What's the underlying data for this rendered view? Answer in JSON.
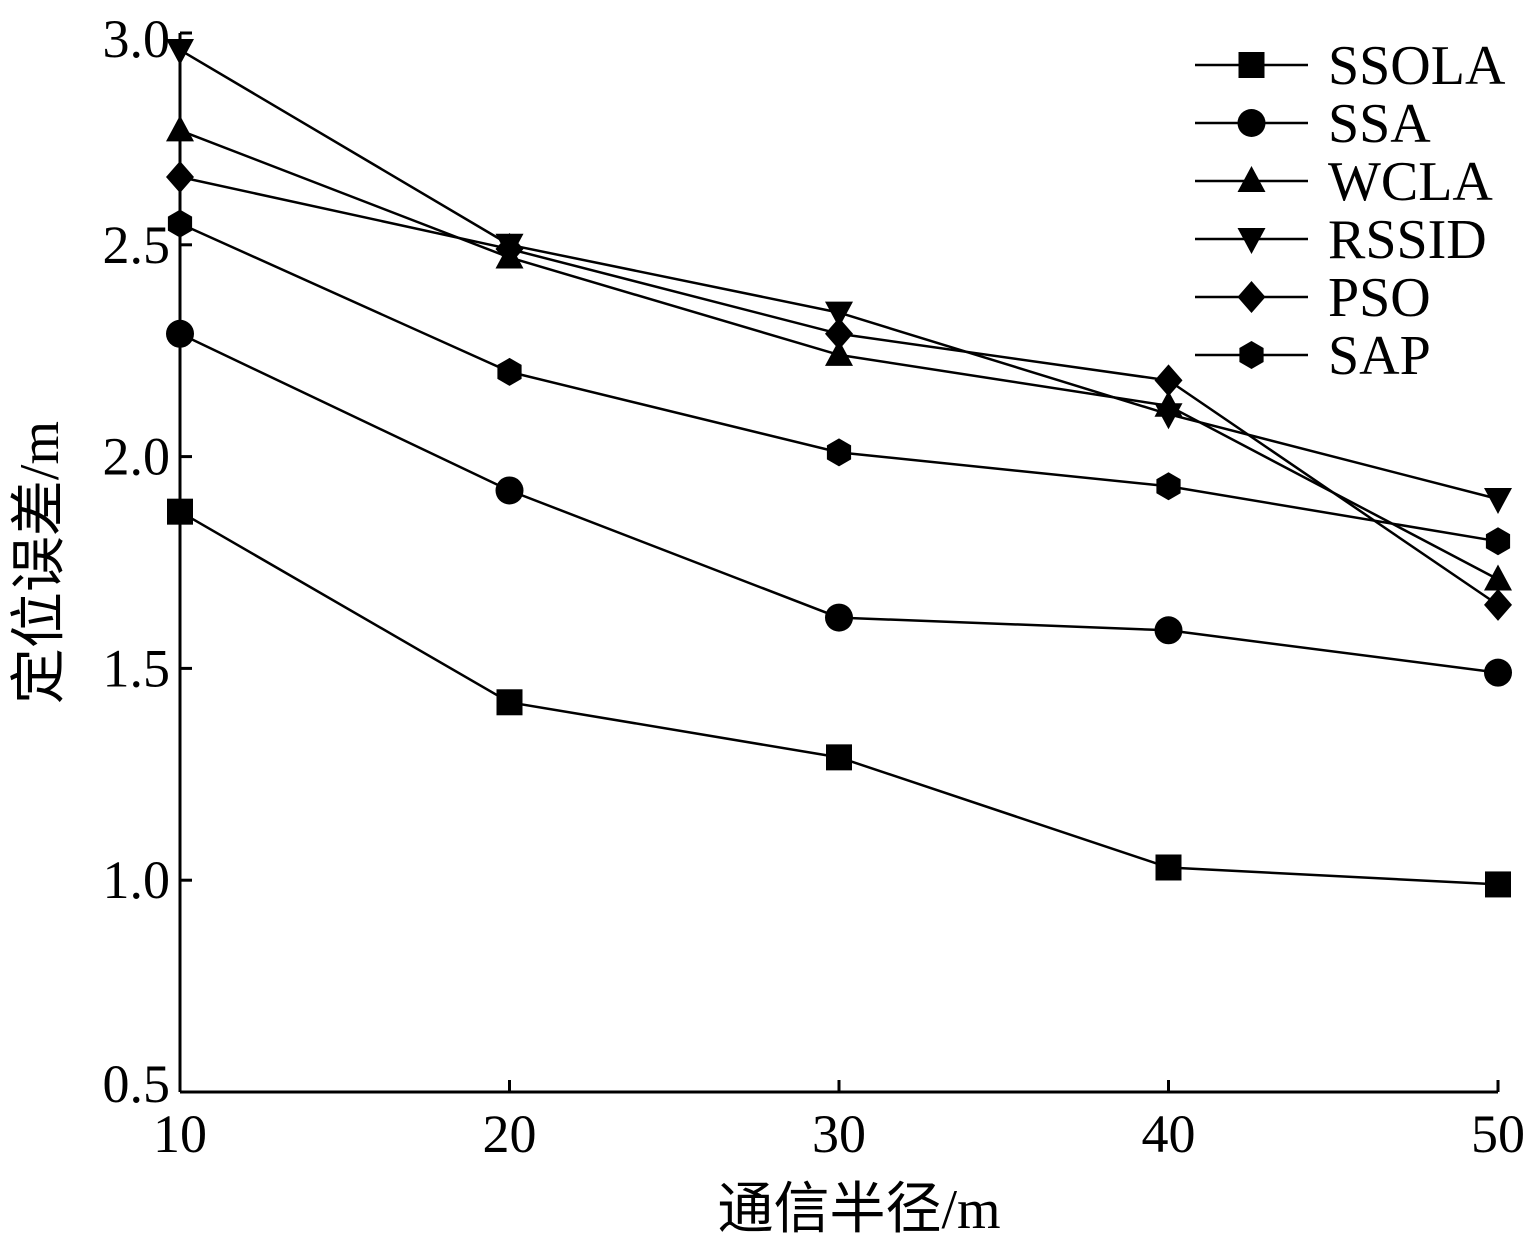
{
  "chart_data": {
    "type": "line",
    "title": "",
    "xlabel": "通信半径/m",
    "ylabel": "定位误差/m",
    "x": [
      10,
      20,
      30,
      40,
      50
    ],
    "xlim": [
      10,
      50
    ],
    "ylim": [
      0.5,
      3.0
    ],
    "xticks": [
      "10",
      "20",
      "30",
      "40",
      "50"
    ],
    "yticks": [
      "0.5",
      "1.0",
      "1.5",
      "2.0",
      "2.5",
      "3.0"
    ],
    "grid": false,
    "legend_position": "top-right",
    "series": [
      {
        "name": "SSOLA",
        "marker": "square",
        "values": [
          1.87,
          1.42,
          1.29,
          1.03,
          0.99
        ]
      },
      {
        "name": "SSA",
        "marker": "circle",
        "values": [
          2.29,
          1.92,
          1.62,
          1.59,
          1.49
        ]
      },
      {
        "name": "WCLA",
        "marker": "triangle-up",
        "values": [
          2.77,
          2.47,
          2.24,
          2.12,
          1.71
        ]
      },
      {
        "name": "RSSID",
        "marker": "triangle-down",
        "values": [
          2.96,
          2.5,
          2.34,
          2.1,
          1.9
        ]
      },
      {
        "name": "PSO",
        "marker": "diamond",
        "values": [
          2.66,
          2.49,
          2.29,
          2.18,
          1.65
        ]
      },
      {
        "name": "SAP",
        "marker": "hexagon",
        "values": [
          2.55,
          2.2,
          2.01,
          1.93,
          1.8
        ]
      }
    ],
    "line_color": "#000000"
  }
}
